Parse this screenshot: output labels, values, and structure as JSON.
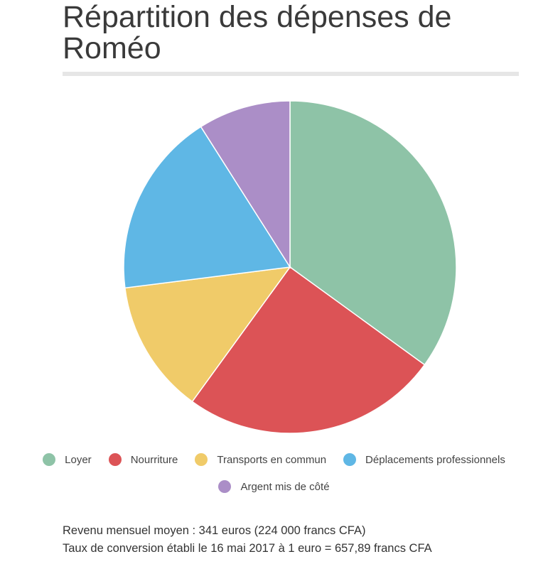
{
  "page": {
    "title": "Répartition des dépenses de Roméo"
  },
  "chart_data": {
    "type": "pie",
    "title": "Répartition des dépenses de Roméo",
    "slices": [
      {
        "label": "Loyer",
        "value": 35,
        "color": "#8ec3a7"
      },
      {
        "label": "Nourriture",
        "value": 25,
        "color": "#dc5356"
      },
      {
        "label": "Transports en commun",
        "value": 13,
        "color": "#f0cb69"
      },
      {
        "label": "Déplacements professionnels",
        "value": 18,
        "color": "#5fb7e5"
      },
      {
        "label": "Argent mis de côté",
        "value": 9,
        "color": "#ab8ec7"
      }
    ],
    "legend_position": "bottom"
  },
  "notes": {
    "line1": "Revenu mensuel moyen : 341 euros (224 000 francs CFA)",
    "line2": "Taux de conversion établi le 16 mai 2017 à 1 euro = 657,89 francs CFA"
  }
}
